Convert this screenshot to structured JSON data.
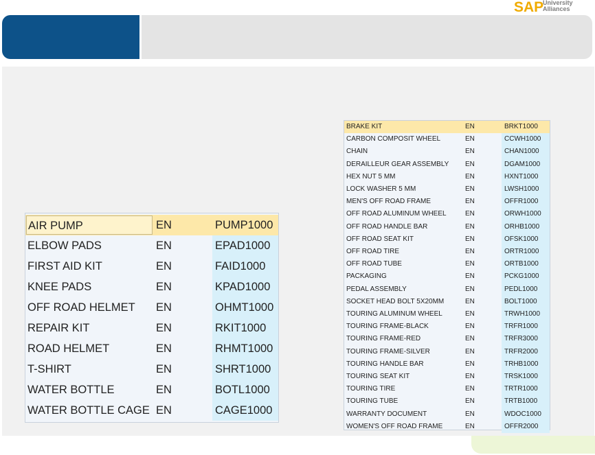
{
  "brand": {
    "logo_text": "SAP",
    "logo_subtext_line1": "University",
    "logo_subtext_line2": "Alliances"
  },
  "colors": {
    "header_blue": "#0d5289",
    "header_gray": "#e4e4e4",
    "selected_row": "#fde8a9",
    "code_column": "#d8f0fa",
    "accent_logo": "#f0ab00"
  },
  "left_table": {
    "selected_index": 0,
    "rows": [
      {
        "name": "AIR PUMP",
        "lang": "EN",
        "code": "PUMP1000"
      },
      {
        "name": "ELBOW PADS",
        "lang": "EN",
        "code": "EPAD1000"
      },
      {
        "name": "FIRST AID KIT",
        "lang": "EN",
        "code": "FAID1000"
      },
      {
        "name": "KNEE PADS",
        "lang": "EN",
        "code": "KPAD1000"
      },
      {
        "name": "OFF ROAD HELMET",
        "lang": "EN",
        "code": "OHMT1000"
      },
      {
        "name": "REPAIR KIT",
        "lang": "EN",
        "code": "RKIT1000"
      },
      {
        "name": "ROAD HELMET",
        "lang": "EN",
        "code": "RHMT1000"
      },
      {
        "name": "T-SHIRT",
        "lang": "EN",
        "code": "SHRT1000"
      },
      {
        "name": "WATER BOTTLE",
        "lang": "EN",
        "code": "BOTL1000"
      },
      {
        "name": "WATER BOTTLE CAGE",
        "lang": "EN",
        "code": "CAGE1000"
      }
    ]
  },
  "right_table": {
    "selected_index": 0,
    "rows": [
      {
        "name": "BRAKE KIT",
        "lang": "EN",
        "code": "BRKT1000"
      },
      {
        "name": "CARBON COMPOSIT WHEEL",
        "lang": "EN",
        "code": "CCWH1000"
      },
      {
        "name": "CHAIN",
        "lang": "EN",
        "code": "CHAN1000"
      },
      {
        "name": "DERAILLEUR GEAR ASSEMBLY",
        "lang": "EN",
        "code": "DGAM1000"
      },
      {
        "name": "HEX NUT 5 MM",
        "lang": "EN",
        "code": "HXNT1000"
      },
      {
        "name": "LOCK WASHER 5 MM",
        "lang": "EN",
        "code": "LWSH1000"
      },
      {
        "name": "MEN'S OFF ROAD FRAME",
        "lang": "EN",
        "code": "OFFR1000"
      },
      {
        "name": "OFF ROAD ALUMINUM WHEEL",
        "lang": "EN",
        "code": "ORWH1000"
      },
      {
        "name": "OFF ROAD HANDLE BAR",
        "lang": "EN",
        "code": "ORHB1000"
      },
      {
        "name": "OFF ROAD SEAT KIT",
        "lang": "EN",
        "code": "OFSK1000"
      },
      {
        "name": "OFF ROAD TIRE",
        "lang": "EN",
        "code": "ORTR1000"
      },
      {
        "name": "OFF ROAD TUBE",
        "lang": "EN",
        "code": "ORTB1000"
      },
      {
        "name": "PACKAGING",
        "lang": "EN",
        "code": "PCKG1000"
      },
      {
        "name": "PEDAL ASSEMBLY",
        "lang": "EN",
        "code": "PEDL1000"
      },
      {
        "name": "SOCKET HEAD BOLT 5X20MM",
        "lang": "EN",
        "code": "BOLT1000"
      },
      {
        "name": "TOURING ALUMINUM WHEEL",
        "lang": "EN",
        "code": "TRWH1000"
      },
      {
        "name": "TOURING FRAME-BLACK",
        "lang": "EN",
        "code": "TRFR1000"
      },
      {
        "name": "TOURING FRAME-RED",
        "lang": "EN",
        "code": "TRFR3000"
      },
      {
        "name": "TOURING FRAME-SILVER",
        "lang": "EN",
        "code": "TRFR2000"
      },
      {
        "name": "TOURING HANDLE BAR",
        "lang": "EN",
        "code": "TRHB1000"
      },
      {
        "name": "TOURING SEAT KIT",
        "lang": "EN",
        "code": "TRSK1000"
      },
      {
        "name": "TOURING TIRE",
        "lang": "EN",
        "code": "TRTR1000"
      },
      {
        "name": "TOURING TUBE",
        "lang": "EN",
        "code": "TRTB1000"
      },
      {
        "name": "WARRANTY DOCUMENT",
        "lang": "EN",
        "code": "WDOC1000"
      },
      {
        "name": "WOMEN'S OFF ROAD FRAME",
        "lang": "EN",
        "code": "OFFR2000"
      }
    ]
  }
}
